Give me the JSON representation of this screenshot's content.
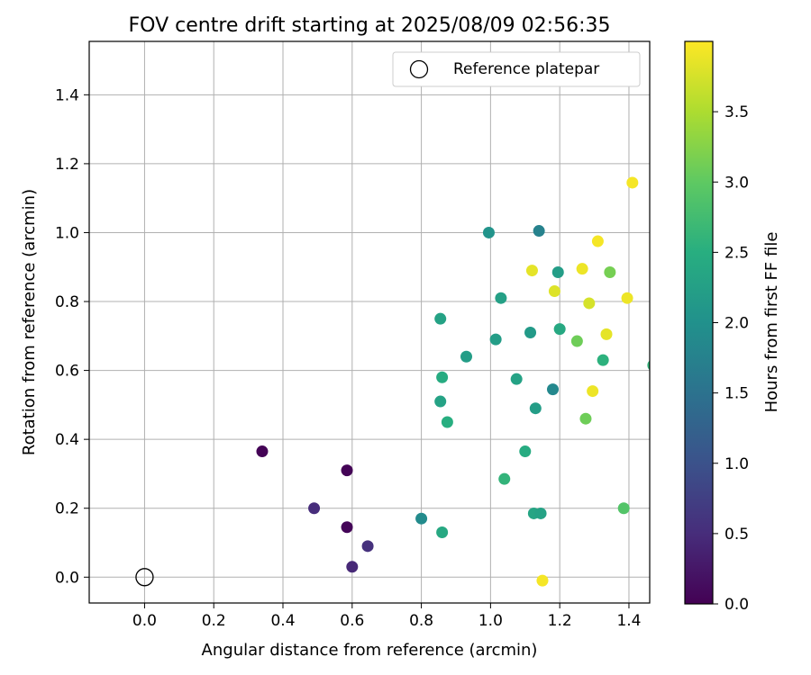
{
  "chart_data": {
    "type": "scatter",
    "title": "FOV centre drift starting at 2025/08/09 02:56:35",
    "xlabel": "Angular distance from reference (arcmin)",
    "ylabel": "Rotation from reference (arcmin)",
    "xlim": [
      -0.16,
      1.46
    ],
    "ylim": [
      -0.075,
      1.555
    ],
    "xticks": [
      "0.0",
      "0.2",
      "0.4",
      "0.6",
      "0.8",
      "1.0",
      "1.2",
      "1.4"
    ],
    "yticks": [
      "0.0",
      "0.2",
      "0.4",
      "0.6",
      "0.8",
      "1.0",
      "1.2",
      "1.4"
    ],
    "grid": true,
    "legend": {
      "position": "top-right",
      "entries": [
        "Reference platepar"
      ]
    },
    "reference_point": {
      "x": 0.0,
      "y": 0.0,
      "label": "Reference platepar"
    },
    "colormap": "viridis",
    "colorbar": {
      "label": "Hours from first FF file",
      "range": [
        0.0,
        4.0
      ],
      "ticks": [
        "0.0",
        "0.5",
        "1.0",
        "1.5",
        "2.0",
        "2.5",
        "3.0",
        "3.5"
      ]
    },
    "points": [
      {
        "x": 0.34,
        "y": 0.365,
        "hours": 0.02
      },
      {
        "x": 0.585,
        "y": 0.31,
        "hours": 0.03
      },
      {
        "x": 0.585,
        "y": 0.145,
        "hours": 0.05
      },
      {
        "x": 0.49,
        "y": 0.2,
        "hours": 0.5
      },
      {
        "x": 0.6,
        "y": 0.03,
        "hours": 0.45
      },
      {
        "x": 0.645,
        "y": 0.09,
        "hours": 0.55
      },
      {
        "x": 0.8,
        "y": 0.17,
        "hours": 1.9
      },
      {
        "x": 0.86,
        "y": 0.13,
        "hours": 2.4
      },
      {
        "x": 0.855,
        "y": 0.75,
        "hours": 2.3
      },
      {
        "x": 0.86,
        "y": 0.58,
        "hours": 2.45
      },
      {
        "x": 0.855,
        "y": 0.51,
        "hours": 2.3
      },
      {
        "x": 0.875,
        "y": 0.45,
        "hours": 2.5
      },
      {
        "x": 0.93,
        "y": 0.64,
        "hours": 2.2
      },
      {
        "x": 0.995,
        "y": 1.0,
        "hours": 2.05
      },
      {
        "x": 1.015,
        "y": 0.69,
        "hours": 2.2
      },
      {
        "x": 1.03,
        "y": 0.81,
        "hours": 2.25
      },
      {
        "x": 1.04,
        "y": 0.285,
        "hours": 2.6
      },
      {
        "x": 1.075,
        "y": 0.575,
        "hours": 2.3
      },
      {
        "x": 1.1,
        "y": 0.365,
        "hours": 2.45
      },
      {
        "x": 1.115,
        "y": 0.71,
        "hours": 2.15
      },
      {
        "x": 1.12,
        "y": 0.89,
        "hours": 3.85
      },
      {
        "x": 1.125,
        "y": 0.185,
        "hours": 2.35
      },
      {
        "x": 1.13,
        "y": 0.49,
        "hours": 2.2
      },
      {
        "x": 1.14,
        "y": 1.005,
        "hours": 1.75
      },
      {
        "x": 1.145,
        "y": 0.185,
        "hours": 2.3
      },
      {
        "x": 1.15,
        "y": -0.01,
        "hours": 3.95
      },
      {
        "x": 1.18,
        "y": 0.545,
        "hours": 1.85
      },
      {
        "x": 1.185,
        "y": 0.83,
        "hours": 3.8
      },
      {
        "x": 1.195,
        "y": 0.885,
        "hours": 2.2
      },
      {
        "x": 1.2,
        "y": 0.72,
        "hours": 2.4
      },
      {
        "x": 1.25,
        "y": 0.685,
        "hours": 3.1
      },
      {
        "x": 1.265,
        "y": 0.895,
        "hours": 3.9
      },
      {
        "x": 1.275,
        "y": 0.46,
        "hours": 3.1
      },
      {
        "x": 1.285,
        "y": 0.795,
        "hours": 3.75
      },
      {
        "x": 1.295,
        "y": 0.54,
        "hours": 3.9
      },
      {
        "x": 1.31,
        "y": 0.975,
        "hours": 3.95
      },
      {
        "x": 1.325,
        "y": 0.63,
        "hours": 2.55
      },
      {
        "x": 1.335,
        "y": 0.705,
        "hours": 3.85
      },
      {
        "x": 1.345,
        "y": 0.885,
        "hours": 3.15
      },
      {
        "x": 1.385,
        "y": 0.2,
        "hours": 2.9
      },
      {
        "x": 1.395,
        "y": 0.81,
        "hours": 3.9
      },
      {
        "x": 1.41,
        "y": 1.145,
        "hours": 3.95
      },
      {
        "x": 1.47,
        "y": 0.615,
        "hours": 2.6
      }
    ]
  }
}
